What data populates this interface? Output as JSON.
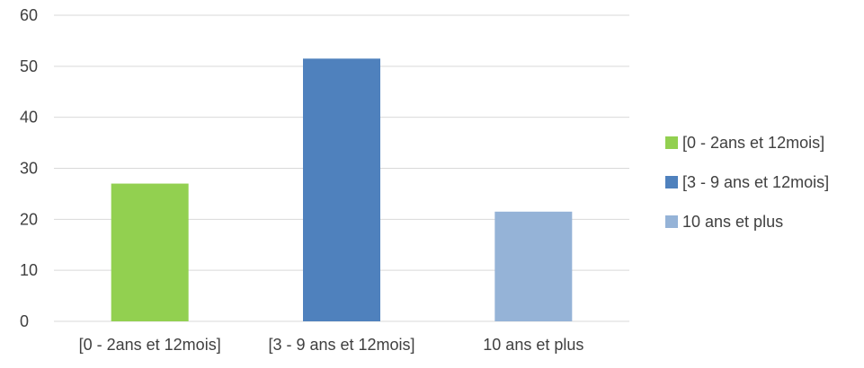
{
  "chart_data": {
    "type": "bar",
    "categories": [
      "[0 - 2ans et 12mois]",
      "[3 - 9 ans et 12mois]",
      "10 ans et plus"
    ],
    "values": [
      27,
      51.5,
      21.5
    ],
    "colors": [
      "#92d050",
      "#4f81bd",
      "#95b3d7"
    ],
    "title": "",
    "xlabel": "",
    "ylabel": "",
    "ylim": [
      0,
      60
    ],
    "yticks": [
      0,
      10,
      20,
      30,
      40,
      50,
      60
    ],
    "grid": true,
    "legend": {
      "placement": "right",
      "entries": [
        "[0 - 2ans et 12mois]",
        "[3 - 9 ans et 12mois]",
        "10 ans et plus"
      ]
    },
    "gridline_color": "#d9d9d9"
  }
}
